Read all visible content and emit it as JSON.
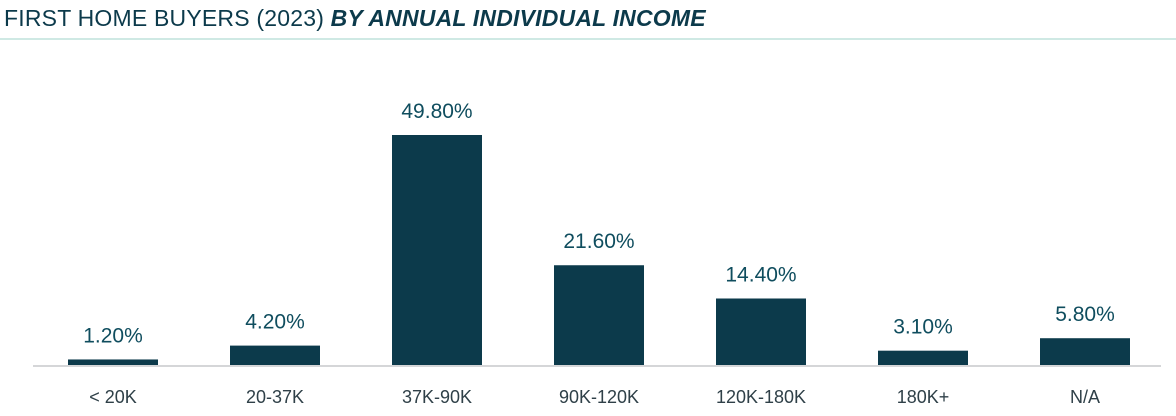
{
  "title": {
    "main": "FIRST HOME BUYERS (2023)",
    "emphasis": "BY ANNUAL INDIVIDUAL INCOME"
  },
  "colors": {
    "bar": "#0c3a4b",
    "value_label": "#0f4d5e",
    "title": "#0c3a4b",
    "title_rule": "#cfe9e4"
  },
  "chart_data": {
    "type": "bar",
    "title": "FIRST HOME BUYERS (2023) BY ANNUAL INDIVIDUAL INCOME",
    "xlabel": "",
    "ylabel": "",
    "categories": [
      "< 20K",
      "20-37K",
      "37K-90K",
      "90K-120K",
      "120K-180K",
      "180K+",
      "N/A"
    ],
    "values": [
      1.2,
      4.2,
      49.8,
      21.6,
      14.4,
      3.1,
      5.8
    ],
    "value_labels": [
      "1.20%",
      "4.20%",
      "49.80%",
      "21.60%",
      "14.40%",
      "3.10%",
      "5.80%"
    ],
    "unit": "%",
    "ylim": [
      0,
      49.8
    ],
    "grid": false,
    "legend": "none"
  }
}
